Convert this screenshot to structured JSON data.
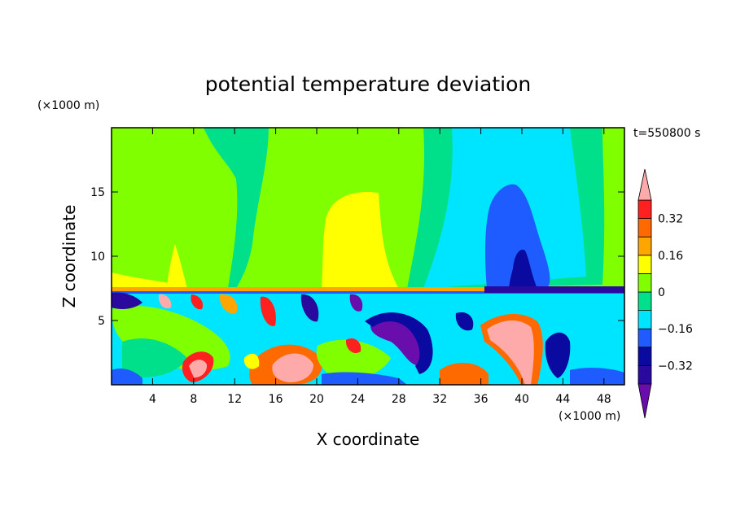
{
  "chart_data": {
    "type": "heatmap",
    "title": "potential temperature deviation",
    "xlabel": "X coordinate",
    "ylabel": "Z coordinate",
    "x_unit": "(×1000 m)",
    "y_unit": "(×1000 m)",
    "time_label": "t=550800 s",
    "xlim": [
      0,
      50
    ],
    "ylim": [
      0,
      20
    ],
    "x_ticks": [
      4,
      8,
      12,
      16,
      20,
      24,
      28,
      32,
      36,
      40,
      44,
      48
    ],
    "y_ticks": [
      5,
      10,
      15
    ],
    "colorbar": {
      "levels": [
        -0.4,
        -0.32,
        -0.24,
        -0.16,
        -0.08,
        0,
        0.08,
        0.16,
        0.24,
        0.32,
        0.4
      ],
      "tick_labels": [
        "0.32",
        "0.16",
        "0",
        "−0.16",
        "−0.32"
      ],
      "tick_values": [
        0.32,
        0.16,
        0,
        -0.16,
        -0.32
      ],
      "colors": [
        "#6a0dad",
        "#2a0a9e",
        "#0a0aa0",
        "#1e5cff",
        "#00e5ff",
        "#00e08a",
        "#80ff00",
        "#ffff00",
        "#ffa500",
        "#ff6a00",
        "#ff2020",
        "#ffaaaa"
      ],
      "extend": "both"
    },
    "field_description_regions": [
      {
        "x": [
          0,
          50
        ],
        "z": [
          7.5,
          20
        ],
        "value": 0.03
      },
      {
        "x": [
          21,
          26
        ],
        "z": [
          7.5,
          15
        ],
        "value": 0.12
      },
      {
        "x": [
          37,
          42
        ],
        "z": [
          7.5,
          15.5
        ],
        "value": -0.2
      },
      {
        "x": [
          39,
          41
        ],
        "z": [
          7.5,
          10.5
        ],
        "value": -0.3
      },
      {
        "x": [
          0,
          50
        ],
        "z": [
          0,
          7.3
        ],
        "value": "mixed"
      }
    ]
  }
}
